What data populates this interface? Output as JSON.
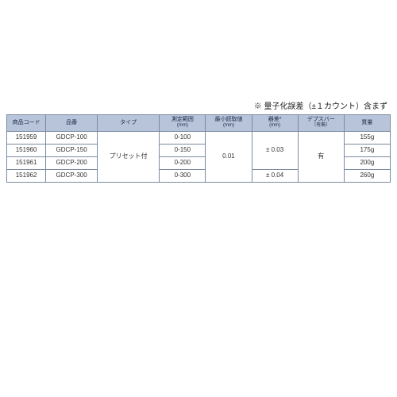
{
  "note": "※ 量子化誤差（±１カウント）含まず",
  "headers": {
    "code": "商品コード",
    "part": "品番",
    "type": "タイプ",
    "range": "測定範囲",
    "range_sub": "(mm)",
    "min": "最小読取値",
    "min_sub": "(mm)",
    "err": "器差*",
    "err_sub": "(mm)",
    "depth": "デプスバー",
    "depth_sub": "（有無）",
    "mass": "質量"
  },
  "type_value": "プリセット付",
  "min_value": "0.01",
  "err_03": "± 0.03",
  "err_04": "± 0.04",
  "depth_value": "有",
  "rows": [
    {
      "code": "151959",
      "part": "GDCP-100",
      "range": "0-100",
      "mass": "155g"
    },
    {
      "code": "151960",
      "part": "GDCP-150",
      "range": "0-150",
      "mass": "175g"
    },
    {
      "code": "151961",
      "part": "GDCP-200",
      "range": "0-200",
      "mass": "200g"
    },
    {
      "code": "151962",
      "part": "GDCP-300",
      "range": "0-300",
      "mass": "260g"
    }
  ],
  "colors": {
    "header_bg": "#b8c4d9",
    "border": "#7a8aa0",
    "bg": "#ffffff"
  }
}
